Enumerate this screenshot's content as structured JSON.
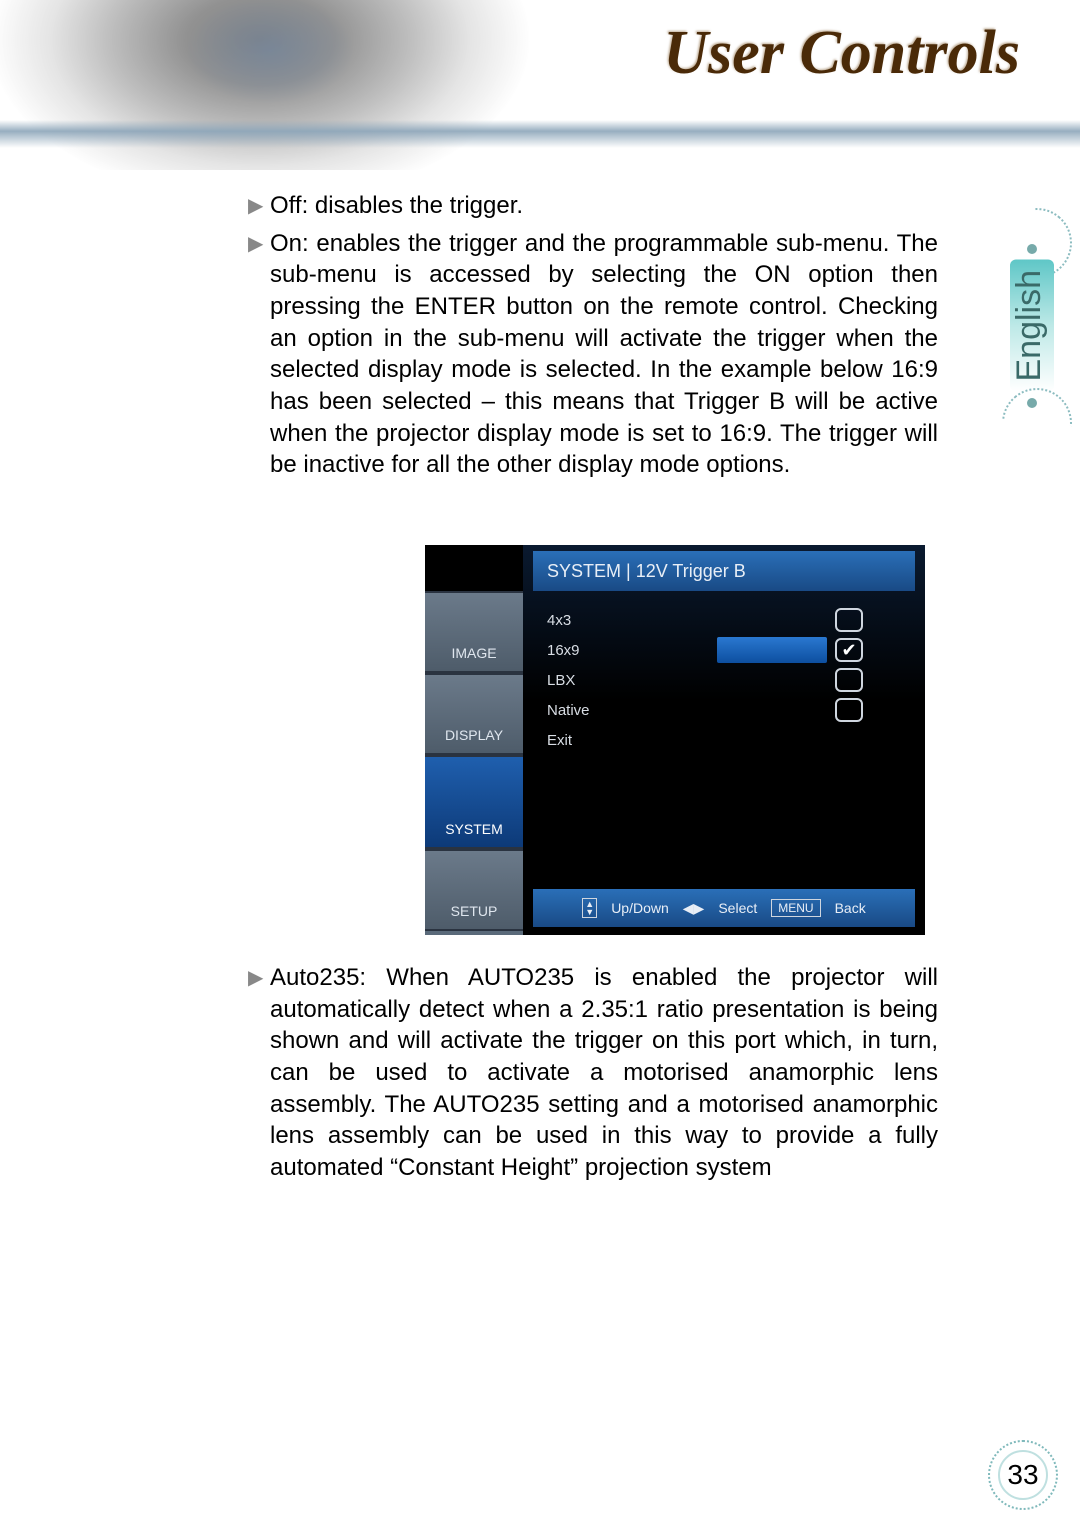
{
  "header": {
    "title": "User Controls"
  },
  "language_tab": "English",
  "body": {
    "bullets": [
      "Off: disables the trigger.",
      "On: enables the trigger and the programmable sub-menu. The sub-menu is accessed by selecting the ON option then pressing the ENTER button on the remote control. Checking an option in the sub-menu will activate the trigger when the selected display mode is selected. In the example below 16:9 has been selected – this means that Trigger B will be active when the projector display mode is set to 16:9. The trigger will be inactive for all the other display mode options.",
      "Auto235: When AUTO235 is enabled the projector will automatically detect when a 2.35:1 ratio presentation is being shown and will activate the trigger on this port which, in turn, can be used to activate a motorised anamorphic lens assembly. The AUTO235 setting and a motorised anamorphic lens assembly can be used in this way to provide a fully automated “Constant Height” projection system"
    ]
  },
  "osd": {
    "title": "SYSTEM | 12V Trigger B",
    "side_tabs": [
      "IMAGE",
      "DISPLAY",
      "SYSTEM",
      "SETUP"
    ],
    "active_tab": "SYSTEM",
    "rows": [
      {
        "name": "4x3",
        "hasCheck": true,
        "checked": false,
        "selected": false
      },
      {
        "name": "16x9",
        "hasCheck": true,
        "checked": true,
        "selected": true
      },
      {
        "name": "LBX",
        "hasCheck": true,
        "checked": false,
        "selected": false
      },
      {
        "name": "Native",
        "hasCheck": true,
        "checked": false,
        "selected": false
      },
      {
        "name": "Exit",
        "hasCheck": false,
        "checked": false,
        "selected": false
      }
    ],
    "footer": {
      "updown": "Up/Down",
      "select": "Select",
      "menu_key": "MENU",
      "back": "Back"
    }
  },
  "page_number": "33",
  "colors": {
    "header_text": "#4a2a08",
    "osd_blue_light": "#2a6fb8",
    "osd_blue_dark": "#194a85",
    "osd_side": "#5a6a7a",
    "teal": "#5fc7c7"
  }
}
